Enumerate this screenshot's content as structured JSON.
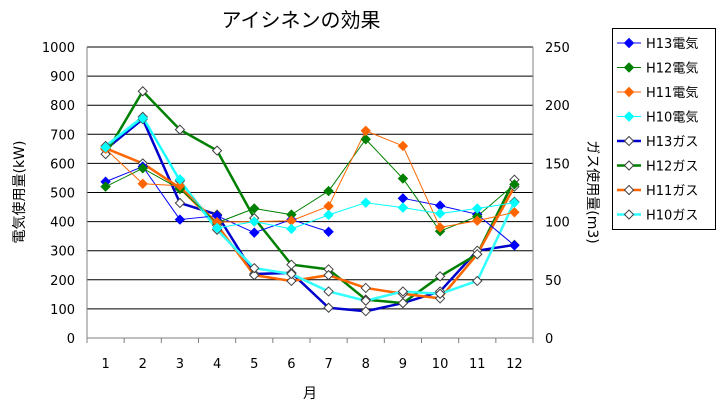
{
  "chart_data": {
    "type": "line",
    "title": "アイシネンの効果",
    "xlabel": "月",
    "ylabel": "電気使用量(kW)",
    "y2label": "ガス使用量(m3)",
    "categories": [
      "1",
      "2",
      "3",
      "4",
      "5",
      "6",
      "7",
      "8",
      "9",
      "10",
      "11",
      "12"
    ],
    "ylim": [
      0,
      1000
    ],
    "yticks": [
      "0",
      "100",
      "200",
      "300",
      "400",
      "500",
      "600",
      "700",
      "800",
      "900",
      "1000"
    ],
    "y2lim": [
      0,
      250
    ],
    "y2ticks": [
      "0",
      "50",
      "100",
      "150",
      "200",
      "250"
    ],
    "grid": true,
    "legend_position": "right",
    "series": [
      {
        "name": "H13電気",
        "axis": "left",
        "color": "#0000ff",
        "marker": "diamond-filled",
        "width": 1,
        "values": [
          537,
          589,
          407,
          420,
          362,
          407,
          365,
          null,
          480,
          455,
          425,
          318
        ]
      },
      {
        "name": "H12電気",
        "axis": "left",
        "color": "#008000",
        "marker": "diamond-filled",
        "width": 1,
        "values": [
          520,
          583,
          512,
          396,
          445,
          424,
          505,
          683,
          548,
          367,
          418,
          528
        ]
      },
      {
        "name": "H11電気",
        "axis": "left",
        "color": "#ff6600",
        "marker": "diamond-filled",
        "width": 1,
        "values": [
          650,
          530,
          523,
          398,
          400,
          403,
          453,
          712,
          660,
          380,
          403,
          432
        ]
      },
      {
        "name": "H10電気",
        "axis": "left",
        "color": "#00ffff",
        "marker": "diamond-filled",
        "width": 1,
        "values": [
          655,
          755,
          545,
          378,
          400,
          375,
          423,
          465,
          448,
          428,
          445,
          465
        ]
      },
      {
        "name": "H13ガス",
        "axis": "right",
        "color": "#0000cc",
        "marker": "diamond-open",
        "width": 2.5,
        "values": [
          162,
          188,
          116,
          106,
          55,
          56,
          26,
          23,
          30,
          40,
          75,
          80
        ]
      },
      {
        "name": "H12ガス",
        "axis": "right",
        "color": "#008000",
        "marker": "diamond-open",
        "width": 2.5,
        "values": [
          158,
          212,
          179,
          161,
          103,
          63,
          59,
          33,
          30,
          53,
          72,
          136
        ]
      },
      {
        "name": "H11ガス",
        "axis": "right",
        "color": "#ff6600",
        "marker": "diamond-open",
        "width": 2.5,
        "values": [
          163,
          150,
          129,
          97,
          54,
          49,
          54,
          43,
          38,
          34,
          72,
          130
        ]
      },
      {
        "name": "H10ガス",
        "axis": "right",
        "color": "#33ffff",
        "marker": "diamond-open",
        "width": 2.5,
        "values": [
          165,
          190,
          135,
          93,
          60,
          55,
          40,
          32,
          40,
          38,
          49,
          117
        ]
      }
    ]
  }
}
